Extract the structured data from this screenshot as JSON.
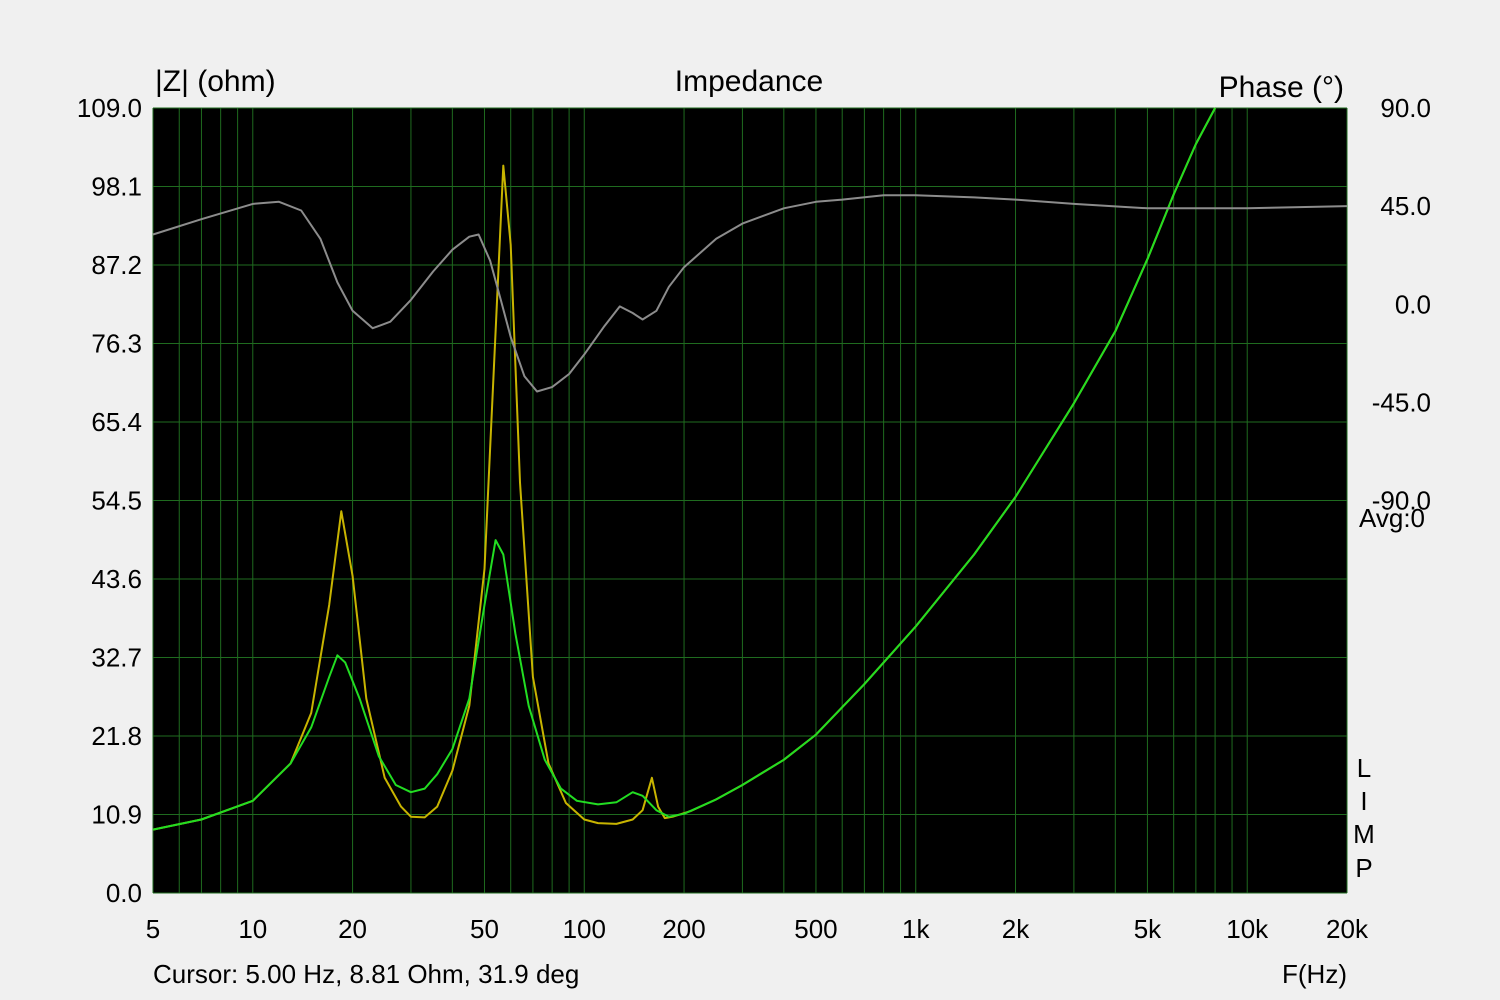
{
  "chart_data": {
    "type": "line",
    "title": "Impedance",
    "left_axis_label": "|Z| (ohm)",
    "right_axis_label": "Phase (°)",
    "x_axis_label": "F(Hz)",
    "x_scale": "log",
    "xlim": [
      5,
      20000
    ],
    "ylim_left": [
      0,
      109
    ],
    "ylim_right": [
      -270,
      90
    ],
    "x_tick_values": [
      5,
      10,
      20,
      50,
      100,
      200,
      500,
      1000,
      2000,
      5000,
      10000,
      20000
    ],
    "x_tick_labels": [
      "5",
      "10",
      "20",
      "50",
      "100",
      "200",
      "500",
      "1k",
      "2k",
      "5k",
      "10k",
      "20k"
    ],
    "y_left_tick_values": [
      0,
      10.9,
      21.8,
      32.7,
      43.6,
      54.5,
      65.4,
      76.3,
      87.2,
      98.1,
      109.0
    ],
    "y_left_tick_labels": [
      "0.0",
      "10.9",
      "21.8",
      "32.7",
      "43.6",
      "54.5",
      "65.4",
      "76.3",
      "87.2",
      "98.1",
      "109.0"
    ],
    "y_right_tick_values": [
      90,
      45,
      0,
      -45,
      -90
    ],
    "y_right_tick_labels": [
      "90.0",
      "45.0",
      "0.0",
      "-45.0",
      "-90.0"
    ],
    "avg_label": "Avg:0",
    "side_letters": [
      "L",
      "I",
      "M",
      "P"
    ],
    "grid": true,
    "colors": {
      "plot_background": "#000000",
      "grid": "#1f6b1f",
      "page_background": "#f0f0f0",
      "magnitude_green": "#22dd22",
      "magnitude_yellow": "#c8b400",
      "phase": "#8c8c8c"
    },
    "series": [
      {
        "key": "yellow",
        "axis": "left",
        "color": "#c8b400",
        "points": [
          [
            5,
            8.8
          ],
          [
            7,
            10.2
          ],
          [
            10,
            12.8
          ],
          [
            13,
            18
          ],
          [
            15,
            25
          ],
          [
            17,
            40
          ],
          [
            18.5,
            53
          ],
          [
            20,
            44
          ],
          [
            22,
            27
          ],
          [
            25,
            16
          ],
          [
            28,
            12
          ],
          [
            30,
            10.6
          ],
          [
            33,
            10.5
          ],
          [
            36,
            12
          ],
          [
            40,
            17
          ],
          [
            45,
            26
          ],
          [
            50,
            45
          ],
          [
            54,
            78
          ],
          [
            57,
            101
          ],
          [
            60,
            90
          ],
          [
            64,
            57
          ],
          [
            70,
            30
          ],
          [
            78,
            18
          ],
          [
            88,
            12.5
          ],
          [
            100,
            10.2
          ],
          [
            110,
            9.7
          ],
          [
            125,
            9.6
          ],
          [
            140,
            10.2
          ],
          [
            150,
            11.5
          ],
          [
            160,
            16
          ],
          [
            167,
            12
          ],
          [
            175,
            10.4
          ],
          [
            185,
            10.6
          ],
          [
            210,
            11.4
          ],
          [
            250,
            13
          ],
          [
            300,
            15
          ],
          [
            400,
            18.5
          ],
          [
            500,
            22
          ],
          [
            700,
            29
          ],
          [
            1000,
            37
          ],
          [
            1500,
            47
          ],
          [
            2000,
            55
          ],
          [
            3000,
            68
          ],
          [
            4000,
            78
          ],
          [
            5000,
            88
          ],
          [
            6000,
            97
          ],
          [
            7000,
            104
          ],
          [
            8000,
            109
          ]
        ]
      },
      {
        "key": "green",
        "axis": "left",
        "color": "#22dd22",
        "points": [
          [
            5,
            8.8
          ],
          [
            7,
            10.2
          ],
          [
            10,
            12.8
          ],
          [
            13,
            18
          ],
          [
            15,
            23
          ],
          [
            17,
            30
          ],
          [
            18,
            33
          ],
          [
            19,
            32
          ],
          [
            21,
            27
          ],
          [
            24,
            19
          ],
          [
            27,
            15
          ],
          [
            30,
            14
          ],
          [
            33,
            14.5
          ],
          [
            36,
            16.5
          ],
          [
            40,
            20
          ],
          [
            45,
            27
          ],
          [
            50,
            40
          ],
          [
            54,
            49
          ],
          [
            57,
            47
          ],
          [
            62,
            36
          ],
          [
            68,
            26
          ],
          [
            76,
            18.5
          ],
          [
            85,
            14.5
          ],
          [
            95,
            12.8
          ],
          [
            110,
            12.3
          ],
          [
            125,
            12.6
          ],
          [
            140,
            14
          ],
          [
            150,
            13.5
          ],
          [
            165,
            11.5
          ],
          [
            180,
            10.6
          ],
          [
            200,
            11
          ],
          [
            250,
            13
          ],
          [
            300,
            15
          ],
          [
            400,
            18.5
          ],
          [
            500,
            22
          ],
          [
            700,
            29
          ],
          [
            1000,
            37
          ],
          [
            1500,
            47
          ],
          [
            2000,
            55
          ],
          [
            3000,
            68
          ],
          [
            4000,
            78
          ],
          [
            5000,
            88
          ],
          [
            6000,
            97
          ],
          [
            7000,
            104
          ],
          [
            8000,
            109
          ]
        ]
      },
      {
        "key": "phase",
        "axis": "right",
        "color": "#8c8c8c",
        "points": [
          [
            5,
            32
          ],
          [
            7,
            39
          ],
          [
            10,
            46
          ],
          [
            12,
            47
          ],
          [
            14,
            43
          ],
          [
            16,
            30
          ],
          [
            18,
            10
          ],
          [
            20,
            -3
          ],
          [
            23,
            -11
          ],
          [
            26,
            -8
          ],
          [
            30,
            2
          ],
          [
            35,
            15
          ],
          [
            40,
            25
          ],
          [
            45,
            31
          ],
          [
            48,
            32
          ],
          [
            52,
            20
          ],
          [
            56,
            2
          ],
          [
            60,
            -15
          ],
          [
            66,
            -33
          ],
          [
            72,
            -40
          ],
          [
            80,
            -38
          ],
          [
            90,
            -32
          ],
          [
            100,
            -23
          ],
          [
            115,
            -10
          ],
          [
            128,
            -1
          ],
          [
            140,
            -4
          ],
          [
            150,
            -7
          ],
          [
            165,
            -3
          ],
          [
            180,
            8
          ],
          [
            200,
            17
          ],
          [
            250,
            30
          ],
          [
            300,
            37
          ],
          [
            400,
            44
          ],
          [
            500,
            47
          ],
          [
            600,
            48
          ],
          [
            800,
            50
          ],
          [
            1000,
            50
          ],
          [
            1500,
            49
          ],
          [
            2000,
            48
          ],
          [
            3000,
            46
          ],
          [
            5000,
            44
          ],
          [
            10000,
            44
          ],
          [
            20000,
            45
          ]
        ]
      }
    ]
  },
  "status": {
    "cursor_readout": "Cursor: 5.00 Hz, 8.81 Ohm, 31.9 deg"
  }
}
